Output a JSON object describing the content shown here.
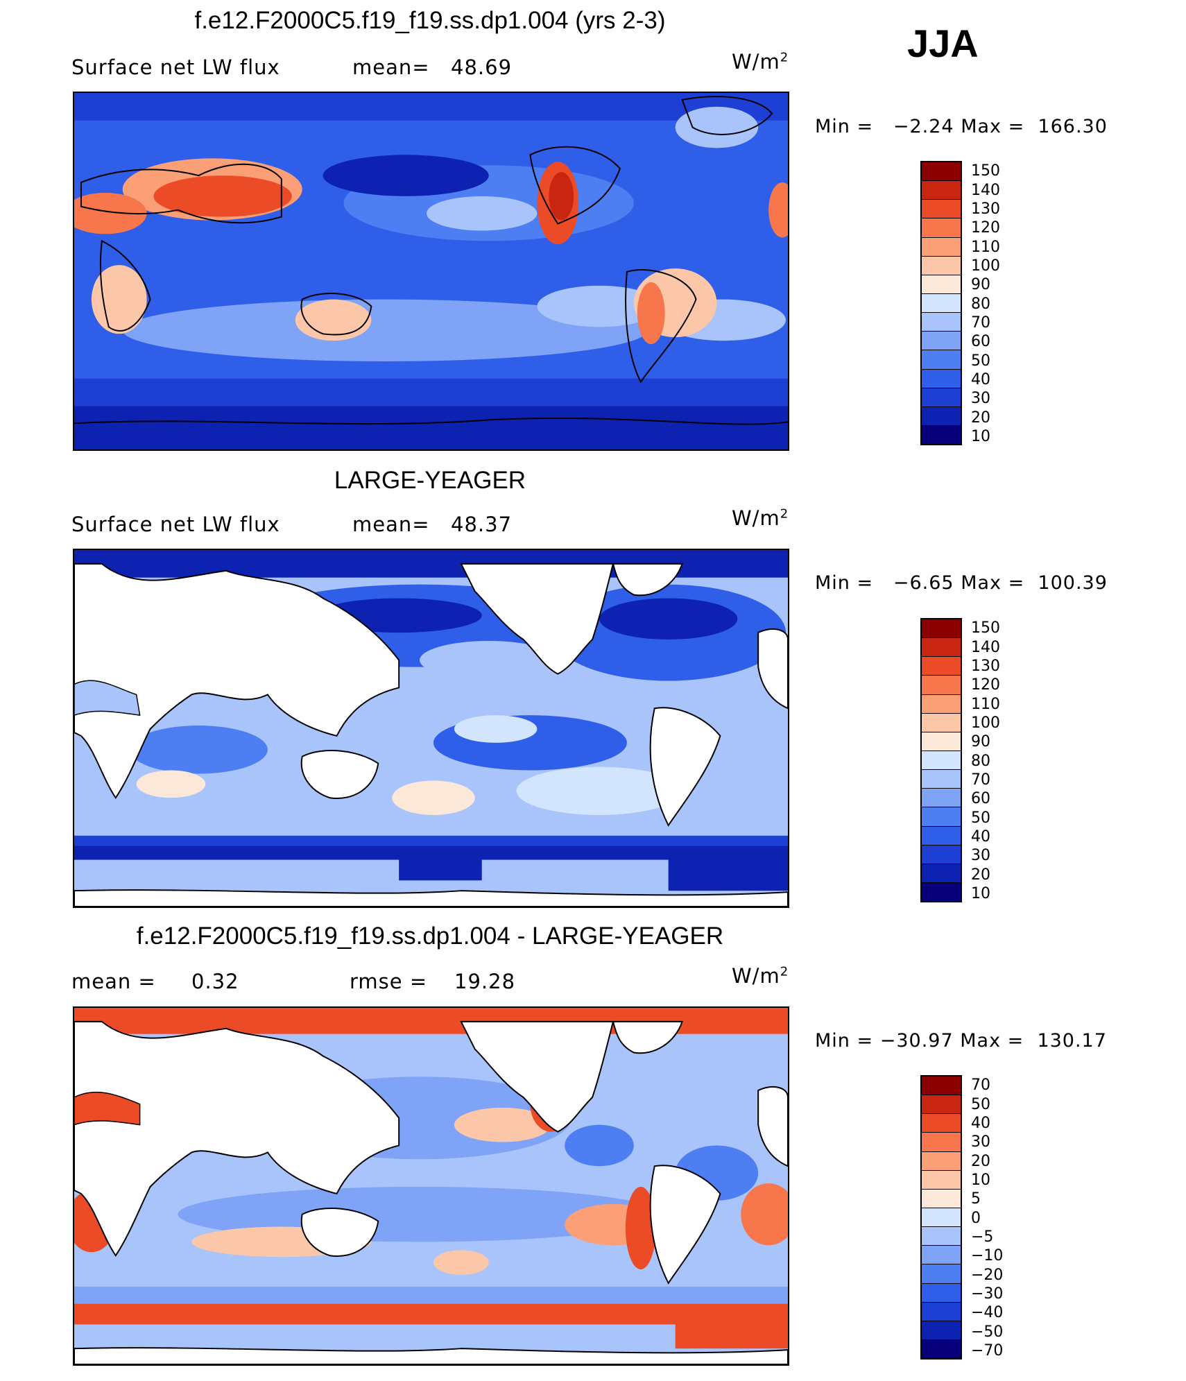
{
  "season": "JJA",
  "palette_abs": [
    "#08007a",
    "#0d22b0",
    "#1d3fd4",
    "#2f5fe8",
    "#4d7ff2",
    "#7ea3f7",
    "#a8c4fa",
    "#d2e5fd",
    "#fbe8d8",
    "#fcc7a8",
    "#fb9f77",
    "#f7764c",
    "#ec4b27",
    "#c82611",
    "#8b0000"
  ],
  "palette_diff": [
    "#08007a",
    "#0d22b0",
    "#1d3fd4",
    "#2f5fe8",
    "#4d7ff2",
    "#7ea3f7",
    "#a8c4fa",
    "#d2e5fd",
    "#fbe8d8",
    "#fcc7a8",
    "#fb9f77",
    "#f7764c",
    "#ec4b27",
    "#c82611",
    "#8b0000"
  ],
  "panels": [
    {
      "title": "f.e12.F2000C5.f19_f19.ss.dp1.004 (yrs 2-3)",
      "left_label": "Surface net LW flux",
      "mid_label": "mean=",
      "mid_value": "48.69",
      "units": "W/m",
      "units_exp": "2",
      "min_label": "Min =",
      "min_value": "−2.24",
      "max_label": "Max =",
      "max_value": "166.30",
      "cbar_labels": [
        "150",
        "140",
        "130",
        "120",
        "110",
        "100",
        "90",
        "80",
        "70",
        "60",
        "50",
        "40",
        "30",
        "20",
        "10"
      ]
    },
    {
      "title": "LARGE-YEAGER",
      "left_label": "Surface net LW flux",
      "mid_label": "mean=",
      "mid_value": "48.37",
      "units": "W/m",
      "units_exp": "2",
      "min_label": "Min =",
      "min_value": "−6.65",
      "max_label": "Max =",
      "max_value": "100.39",
      "cbar_labels": [
        "150",
        "140",
        "130",
        "120",
        "110",
        "100",
        "90",
        "80",
        "70",
        "60",
        "50",
        "40",
        "30",
        "20",
        "10"
      ]
    },
    {
      "title": "f.e12.F2000C5.f19_f19.ss.dp1.004 - LARGE-YEAGER",
      "left_label": "mean =",
      "left_value": "0.32",
      "mid_label": "rmse =",
      "mid_value": "19.28",
      "units": "W/m",
      "units_exp": "2",
      "min_label": "Min =",
      "min_value": "−30.97",
      "max_label": "Max =",
      "max_value": "130.17",
      "cbar_labels": [
        "70",
        "50",
        "40",
        "30",
        "20",
        "10",
        "5",
        "0",
        "−5",
        "−10",
        "−20",
        "−30",
        "−40",
        "−50",
        "−70"
      ]
    }
  ]
}
